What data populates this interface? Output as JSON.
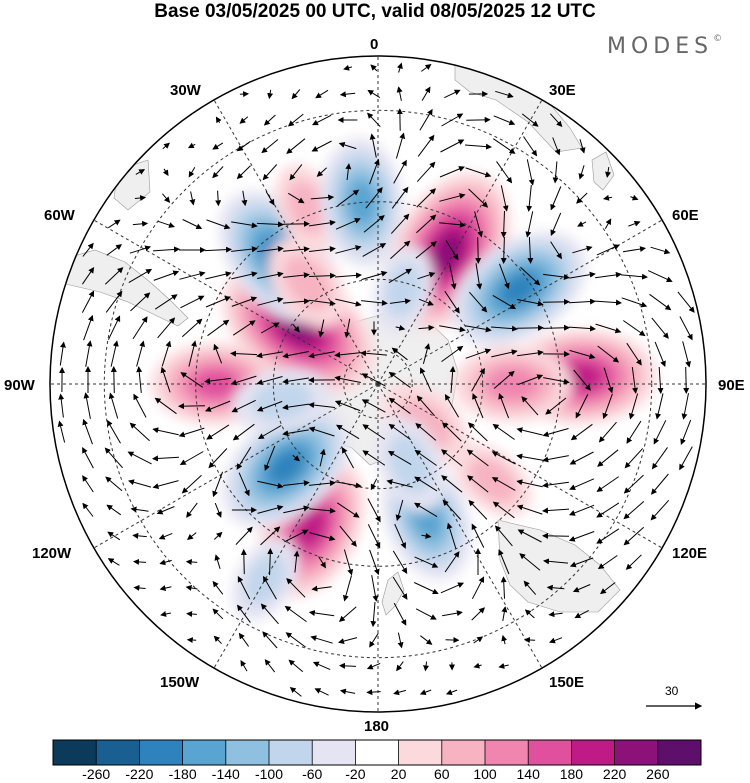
{
  "title": "Base 03/05/2025 00 UTC, valid 08/05/2025 12 UTC",
  "brand": {
    "name": "MODES",
    "mark": "©"
  },
  "longitude_labels": {
    "lon_0": "0",
    "lon_30e": "30E",
    "lon_60e": "60E",
    "lon_90e": "90E",
    "lon_120e": "120E",
    "lon_150e": "150E",
    "lon_180": "180",
    "lon_150w": "150W",
    "lon_120w": "120W",
    "lon_90w": "90W",
    "lon_60w": "60W",
    "lon_30w": "30W"
  },
  "vector_scale": {
    "label": "30",
    "value": 30
  },
  "colorbar": {
    "ticks": [
      "-260",
      "-220",
      "-180",
      "-140",
      "-100",
      "-60",
      "-20",
      "20",
      "60",
      "100",
      "140",
      "180",
      "220",
      "260"
    ],
    "colors": [
      "#0b3a5a",
      "#1a5f91",
      "#2f83bd",
      "#5aa4d1",
      "#8fc0df",
      "#c1d6ec",
      "#e4e4f2",
      "#ffffff",
      "#fbd9dd",
      "#f7b3c2",
      "#f086b0",
      "#e0509d",
      "#c01a86",
      "#8c1179",
      "#5e0f6b"
    ]
  },
  "map": {
    "projection": "south-polar-stereographic",
    "land_color": "#efefef",
    "anomalies": [
      {
        "lat": -35,
        "lon": 88,
        "value": 180
      },
      {
        "lat": -52,
        "lon": 90,
        "value": 120
      },
      {
        "lat": -72,
        "lon": 130,
        "value": 80
      },
      {
        "lat": -48,
        "lon": 130,
        "value": 60
      },
      {
        "lat": -50,
        "lon": 160,
        "value": -140
      },
      {
        "lat": -65,
        "lon": 158,
        "value": -80
      },
      {
        "lat": -46,
        "lon": 205,
        "value": 180
      },
      {
        "lat": -55,
        "lon": 228,
        "value": -180
      },
      {
        "lat": -45,
        "lon": 270,
        "value": 140
      },
      {
        "lat": -70,
        "lon": 280,
        "value": -60
      },
      {
        "lat": -62,
        "lon": 305,
        "value": 220
      },
      {
        "lat": -45,
        "lon": 322,
        "value": -180
      },
      {
        "lat": -55,
        "lon": 325,
        "value": 80
      },
      {
        "lat": -38,
        "lon": 338,
        "value": 60
      },
      {
        "lat": -40,
        "lon": 355,
        "value": -140
      },
      {
        "lat": -48,
        "lon": 28,
        "value": 220
      },
      {
        "lat": -43,
        "lon": 56,
        "value": -180
      },
      {
        "lat": -62,
        "lon": 15,
        "value": -60
      },
      {
        "lat": -62,
        "lon": 260,
        "value": -80
      },
      {
        "lat": -30,
        "lon": 210,
        "value": -60
      }
    ]
  }
}
